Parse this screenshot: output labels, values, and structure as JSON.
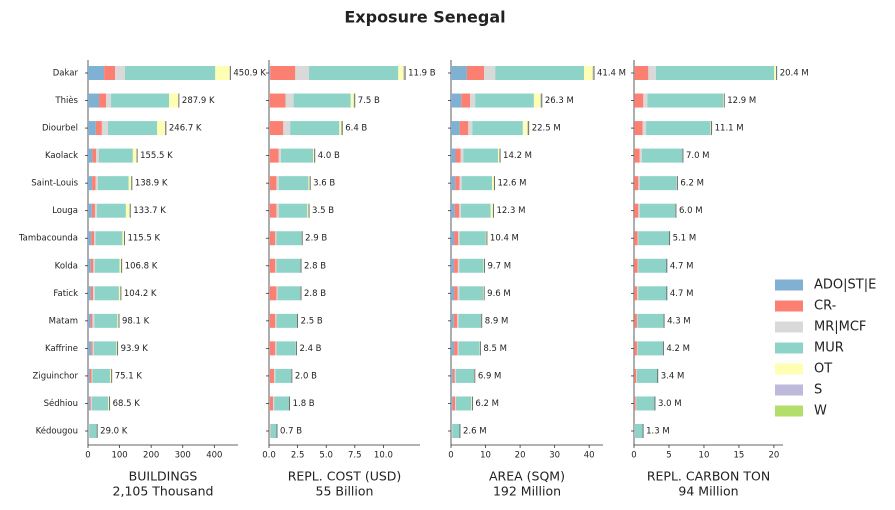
{
  "title": "Exposure Senegal",
  "chart_data": [
    {
      "type": "bar",
      "xlabel": "BUILDINGS",
      "subtitle": "2,105 Thousand",
      "categories": [
        "Dakar",
        "Thiès",
        "Diourbel",
        "Kaolack",
        "Saint-Louis",
        "Louga",
        "Tambacounda",
        "Kolda",
        "Fatick",
        "Matam",
        "Kaffrine",
        "Ziguinchor",
        "Sédhiou",
        "Kédougou"
      ],
      "series": [
        {
          "name": "ADO|ST|E",
          "color": "#80b1d3",
          "values": [
            51,
            35,
            25,
            14,
            13,
            12,
            10,
            9,
            9,
            8,
            10,
            5,
            5,
            2
          ]
        },
        {
          "name": "CR-",
          "color": "#fb8072",
          "values": [
            35,
            22,
            19,
            12,
            11,
            10,
            9,
            8,
            7,
            6,
            5,
            6,
            4,
            1
          ]
        },
        {
          "name": "MR|MCF",
          "color": "#d9d9d9",
          "values": [
            31,
            16,
            19,
            8,
            7,
            6,
            5,
            5,
            6,
            6,
            4,
            3,
            3,
            1
          ]
        },
        {
          "name": "MUR",
          "color": "#8dd3c7",
          "values": [
            286,
            184,
            156,
            108,
            98,
            92,
            85,
            78,
            76,
            73,
            71,
            56,
            52,
            24
          ]
        },
        {
          "name": "OT",
          "color": "#ffffb3",
          "values": [
            45,
            29,
            25,
            12,
            8,
            12,
            5,
            5,
            5,
            4,
            3,
            4,
            3,
            0.5
          ]
        },
        {
          "name": "S",
          "color": "#bebada",
          "values": [
            1.5,
            1,
            1.5,
            1,
            1,
            1,
            1,
            1,
            1,
            1,
            0.5,
            1,
            1,
            0.3
          ]
        },
        {
          "name": "W",
          "color": "#b3de69",
          "values": [
            1.4,
            0.9,
            1.2,
            0.5,
            0.9,
            0.7,
            0.5,
            0.8,
            0.2,
            0.1,
            0.4,
            0.1,
            0.5,
            0.2
          ]
        }
      ],
      "totals": [
        450.9,
        287.9,
        246.7,
        155.5,
        138.9,
        133.7,
        115.5,
        106.8,
        104.2,
        98.1,
        93.9,
        75.1,
        68.5,
        29.0
      ],
      "total_labels": [
        "450.9 K",
        "287.9 K",
        "246.7 K",
        "155.5 K",
        "138.9 K",
        "133.7 K",
        "115.5 K",
        "106.8 K",
        "104.2 K",
        "98.1 K",
        "93.9 K",
        "75.1 K",
        "68.5 K",
        "29.0 K"
      ],
      "xlim": [
        0,
        475
      ],
      "xticks": [
        0,
        100,
        200,
        300,
        400
      ]
    },
    {
      "type": "bar",
      "xlabel": "REPL. COST (USD)",
      "subtitle": "55 Billion",
      "series": [
        {
          "values": [
            0.1,
            0.05,
            0.05,
            0.05,
            0.05,
            0.05,
            0.05,
            0.05,
            0.05,
            0.05,
            0.05,
            0.05,
            0.05,
            0.02
          ]
        },
        {
          "values": [
            2.2,
            1.4,
            1.2,
            0.8,
            0.6,
            0.6,
            0.5,
            0.5,
            0.6,
            0.5,
            0.5,
            0.4,
            0.3,
            0.05
          ]
        },
        {
          "values": [
            1.2,
            0.7,
            0.6,
            0.2,
            0.2,
            0.2,
            0.1,
            0.1,
            0.1,
            0.1,
            0.1,
            0.1,
            0.1,
            0.05
          ]
        },
        {
          "values": [
            7.8,
            5.0,
            4.3,
            2.8,
            2.6,
            2.5,
            2.2,
            2.1,
            2.0,
            1.8,
            1.7,
            1.4,
            1.3,
            0.55
          ]
        },
        {
          "values": [
            0.45,
            0.25,
            0.15,
            0.1,
            0.1,
            0.1,
            0.03,
            0.03,
            0.03,
            0.03,
            0.03,
            0.03,
            0.03,
            0.02
          ]
        },
        {
          "values": [
            0.1,
            0.05,
            0.05,
            0.03,
            0.03,
            0.03,
            0.01,
            0.01,
            0.01,
            0.01,
            0.01,
            0.01,
            0.01,
            0.005
          ]
        },
        {
          "values": [
            0.05,
            0.05,
            0.05,
            0.02,
            0.02,
            0.02,
            0.01,
            0.01,
            0.01,
            0.01,
            0.01,
            0.01,
            0.01,
            0.005
          ]
        }
      ],
      "totals": [
        11.9,
        7.5,
        6.4,
        4.0,
        3.6,
        3.5,
        2.9,
        2.8,
        2.8,
        2.5,
        2.4,
        2.0,
        1.8,
        0.7
      ],
      "total_labels": [
        "11.9 B",
        "7.5 B",
        "6.4 B",
        "4.0 B",
        "3.6 B",
        "3.5 B",
        "2.9 B",
        "2.8 B",
        "2.8 B",
        "2.5 B",
        "2.4 B",
        "2.0 B",
        "1.8 B",
        "0.7 B"
      ],
      "xlim": [
        0,
        13.2
      ],
      "xticks": [
        {
          "value": 0,
          "label": "0.0"
        },
        2.5,
        {
          "value": 5,
          "label": "5.0"
        },
        7.5,
        {
          "value": 10,
          "label": "10.0"
        }
      ]
    },
    {
      "type": "bar",
      "xlabel": "AREA (SQM)",
      "subtitle": "192 Million",
      "series": [
        {
          "values": [
            4.6,
            3.0,
            2.5,
            1.3,
            1.2,
            1.1,
            1.0,
            0.9,
            0.9,
            0.8,
            0.9,
            0.5,
            0.4,
            0.2
          ]
        },
        {
          "values": [
            5.0,
            2.5,
            2.5,
            1.5,
            1.3,
            1.3,
            1.1,
            1.1,
            1.0,
            1.0,
            1.0,
            0.6,
            0.8,
            0.1
          ]
        },
        {
          "values": [
            3.2,
            1.5,
            1.2,
            0.8,
            0.6,
            0.5,
            0.4,
            0.4,
            0.5,
            0.4,
            0.3,
            0.3,
            0.2,
            0.1
          ]
        },
        {
          "values": [
            25.7,
            17.0,
            14.6,
            10.0,
            8.8,
            8.6,
            7.6,
            7.0,
            6.9,
            6.5,
            6.1,
            5.3,
            4.5,
            2.1
          ]
        },
        {
          "values": [
            2.5,
            1.9,
            1.3,
            0.4,
            0.5,
            0.6,
            0.2,
            0.2,
            0.2,
            0.1,
            0.1,
            0.1,
            0.2,
            0.05
          ]
        },
        {
          "values": [
            0.2,
            0.2,
            0.2,
            0.1,
            0.1,
            0.1,
            0.05,
            0.05,
            0.05,
            0.05,
            0.05,
            0.05,
            0.05,
            0.03
          ]
        },
        {
          "values": [
            0.2,
            0.2,
            0.2,
            0.1,
            0.1,
            0.1,
            0.05,
            0.05,
            0.05,
            0.05,
            0.05,
            0.05,
            0.05,
            0.02
          ]
        }
      ],
      "totals": [
        41.4,
        26.3,
        22.5,
        14.2,
        12.6,
        12.3,
        10.4,
        9.7,
        9.6,
        8.9,
        8.5,
        6.9,
        6.2,
        2.6
      ],
      "total_labels": [
        "41.4 M",
        "26.3 M",
        "22.5 M",
        "14.2 M",
        "12.6 M",
        "12.3 M",
        "10.4 M",
        "9.7 M",
        "9.6 M",
        "8.9 M",
        "8.5 M",
        "6.9 M",
        "6.2 M",
        "2.6 M"
      ],
      "xlim": [
        0,
        44
      ],
      "xticks": [
        0,
        10,
        20,
        30,
        40
      ]
    },
    {
      "type": "bar",
      "xlabel": "REPL. CARBON TON",
      "subtitle": "94 Million",
      "series": [
        {
          "values": [
            0.05,
            0.03,
            0.03,
            0.02,
            0.02,
            0.02,
            0.02,
            0.02,
            0.02,
            0.02,
            0.02,
            0.02,
            0.02,
            0.01
          ]
        },
        {
          "values": [
            2.0,
            1.3,
            1.2,
            0.8,
            0.6,
            0.6,
            0.5,
            0.5,
            0.4,
            0.4,
            0.4,
            0.3,
            0.2,
            0.05
          ]
        },
        {
          "values": [
            1.1,
            0.6,
            0.5,
            0.3,
            0.2,
            0.2,
            0.1,
            0.1,
            0.2,
            0.1,
            0.1,
            0.1,
            0.1,
            0.05
          ]
        },
        {
          "values": [
            16.9,
            10.8,
            9.2,
            5.8,
            5.3,
            5.1,
            4.44,
            4.04,
            4.04,
            3.74,
            3.64,
            2.94,
            2.64,
            1.17
          ]
        },
        {
          "values": [
            0.25,
            0.1,
            0.1,
            0.04,
            0.04,
            0.04,
            0.02,
            0.02,
            0.02,
            0.02,
            0.02,
            0.02,
            0.02,
            0.01
          ]
        },
        {
          "values": [
            0.05,
            0.04,
            0.04,
            0.02,
            0.02,
            0.02,
            0.01,
            0.01,
            0.01,
            0.01,
            0.01,
            0.01,
            0.01,
            0.005
          ]
        },
        {
          "values": [
            0.05,
            0.03,
            0.03,
            0.02,
            0.02,
            0.02,
            0.01,
            0.01,
            0.01,
            0.01,
            0.01,
            0.01,
            0.01,
            0.005
          ]
        }
      ],
      "totals": [
        20.4,
        12.9,
        11.1,
        7.0,
        6.2,
        6.0,
        5.1,
        4.7,
        4.7,
        4.3,
        4.2,
        3.4,
        3.0,
        1.3
      ],
      "total_labels": [
        "20.4 M",
        "12.9 M",
        "11.1 M",
        "7.0 M",
        "6.2 M",
        "6.0 M",
        "5.1 M",
        "4.7 M",
        "4.7 M",
        "4.3 M",
        "4.2 M",
        "3.4 M",
        "3.0 M",
        "1.3 M"
      ],
      "xlim": [
        0,
        21.3
      ],
      "xticks": [
        0,
        5,
        10,
        15,
        20
      ]
    }
  ]
}
